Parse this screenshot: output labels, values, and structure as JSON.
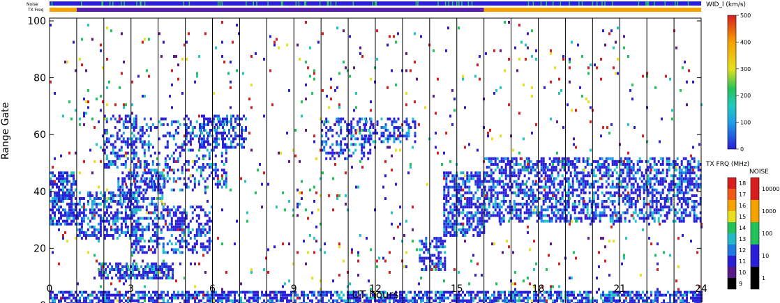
{
  "chart_data": {
    "type": "heatmap",
    "xlabel": "UT hours",
    "ylabel": "Range Gate",
    "xlim": [
      0,
      24
    ],
    "ylim": [
      0,
      100
    ],
    "x_ticks": [
      "0",
      "3",
      "6",
      "9",
      "12",
      "15",
      "18",
      "21",
      "24"
    ],
    "y_ticks": [
      "0",
      "20",
      "40",
      "60",
      "80",
      "100"
    ],
    "grid": "vertical lines every hour",
    "top_bars": [
      {
        "label": "Noise",
        "base_color": "#2a1fd6",
        "alt_color": "#22c35a"
      },
      {
        "label": "TX Freq",
        "segments": [
          {
            "from": 0,
            "to": 1,
            "color": "#f6a200"
          },
          {
            "from": 1,
            "to": 16,
            "color": "#5a1fb0"
          },
          {
            "from": 16,
            "to": 24,
            "color": "#f6a200"
          }
        ]
      }
    ],
    "colorbars": [
      {
        "title": "WID_l  (km/s)",
        "ticks": [
          "0",
          "100",
          "200",
          "300",
          "400",
          "500"
        ],
        "range": [
          0,
          500
        ]
      },
      {
        "title": "TX FRQ (MHz)",
        "ticks": [
          "9",
          "10",
          "11",
          "12",
          "13",
          "14",
          "15",
          "16",
          "17",
          "18"
        ],
        "colors": [
          "#000000",
          "#5a1a8a",
          "#2a1fd6",
          "#1e7ae0",
          "#22b8c8",
          "#22c35a",
          "#e6e01e",
          "#f6a200",
          "#f05a14",
          "#d81e1e"
        ]
      },
      {
        "title": "NOISE",
        "ticks": [
          "1",
          "10",
          "100",
          "1000",
          "10000"
        ],
        "colors": [
          "#000000",
          "#2a1fd6",
          "#22c35a",
          "#f6a200",
          "#d81e1e"
        ]
      }
    ],
    "scatter_regions": [
      {
        "x": [
          0.0,
          1.0
        ],
        "y": [
          28,
          47
        ],
        "density": 0.7
      },
      {
        "x": [
          1.0,
          3.3
        ],
        "y": [
          23,
          40
        ],
        "density": 0.55
      },
      {
        "x": [
          2.0,
          3.2
        ],
        "y": [
          48,
          67
        ],
        "density": 0.4
      },
      {
        "x": [
          1.8,
          4.5
        ],
        "y": [
          9,
          15
        ],
        "density": 0.65
      },
      {
        "x": [
          2.5,
          4.2
        ],
        "y": [
          35,
          47
        ],
        "density": 0.5
      },
      {
        "x": [
          3.0,
          6.0
        ],
        "y": [
          18,
          35
        ],
        "density": 0.4
      },
      {
        "x": [
          3.0,
          6.5
        ],
        "y": [
          40,
          66
        ],
        "density": 0.3
      },
      {
        "x": [
          5.5,
          7.2
        ],
        "y": [
          55,
          67
        ],
        "density": 0.5
      },
      {
        "x": [
          10.0,
          11.8
        ],
        "y": [
          51,
          66
        ],
        "density": 0.4
      },
      {
        "x": [
          11.5,
          13.5
        ],
        "y": [
          57,
          66
        ],
        "density": 0.4
      },
      {
        "x": [
          13.6,
          14.6
        ],
        "y": [
          12,
          24
        ],
        "density": 0.5
      },
      {
        "x": [
          14.5,
          16.0
        ],
        "y": [
          24,
          47
        ],
        "density": 0.6
      },
      {
        "x": [
          16.0,
          24.0
        ],
        "y": [
          29,
          52
        ],
        "density": 0.55
      },
      {
        "x": [
          0.0,
          24.0
        ],
        "y": [
          0,
          5
        ],
        "density": 0.65
      },
      {
        "x": [
          0.0,
          24.0
        ],
        "y": [
          0,
          100
        ],
        "density": 0.025
      }
    ]
  }
}
